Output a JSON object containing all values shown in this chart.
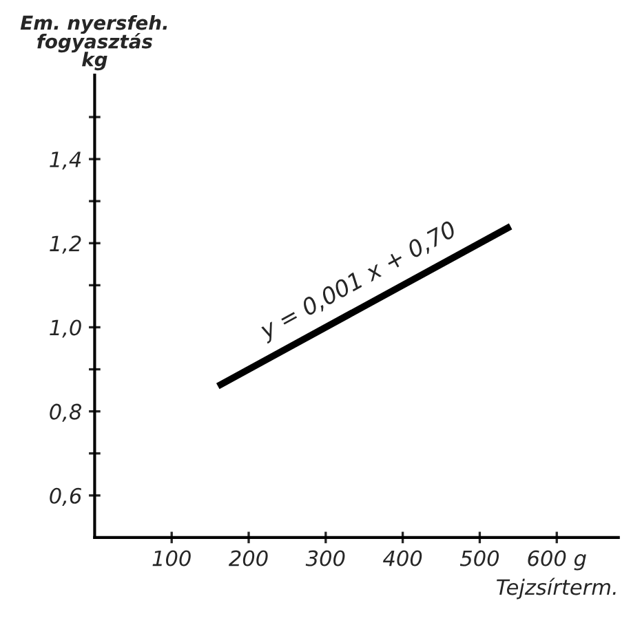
{
  "chart_data": {
    "type": "line",
    "ylabel": "Em. nyersfeh.\nfogyasztás\nkg",
    "xlabel": "Tejzsírterm.",
    "series": [
      {
        "color": "#000000",
        "x": [
          160,
          540
        ],
        "values": [
          0.86,
          1.24
        ]
      }
    ],
    "xlim": [
      0,
      680
    ],
    "ylim": [
      0.5,
      1.6
    ],
    "xticks": [
      100,
      200,
      300,
      400,
      500,
      {
        "value": 600,
        "label": "600 g"
      }
    ],
    "yticks": [
      {
        "value": 0.6,
        "label": "0,6"
      },
      {
        "value": 0.7,
        "label": null
      },
      {
        "value": 0.8,
        "label": "0,8"
      },
      {
        "value": 0.9,
        "label": null
      },
      {
        "value": 1.0,
        "label": "1,0"
      },
      {
        "value": 1.1,
        "label": null
      },
      {
        "value": 1.2,
        "label": "1,2"
      },
      {
        "value": 1.3,
        "label": null
      },
      {
        "value": 1.4,
        "label": "1,4"
      },
      {
        "value": 1.5,
        "label": null
      }
    ],
    "annotations": [
      "y = 0,001 x + 0,70"
    ],
    "grid": false,
    "legend": false,
    "marker": "none",
    "line_style": "solid"
  }
}
